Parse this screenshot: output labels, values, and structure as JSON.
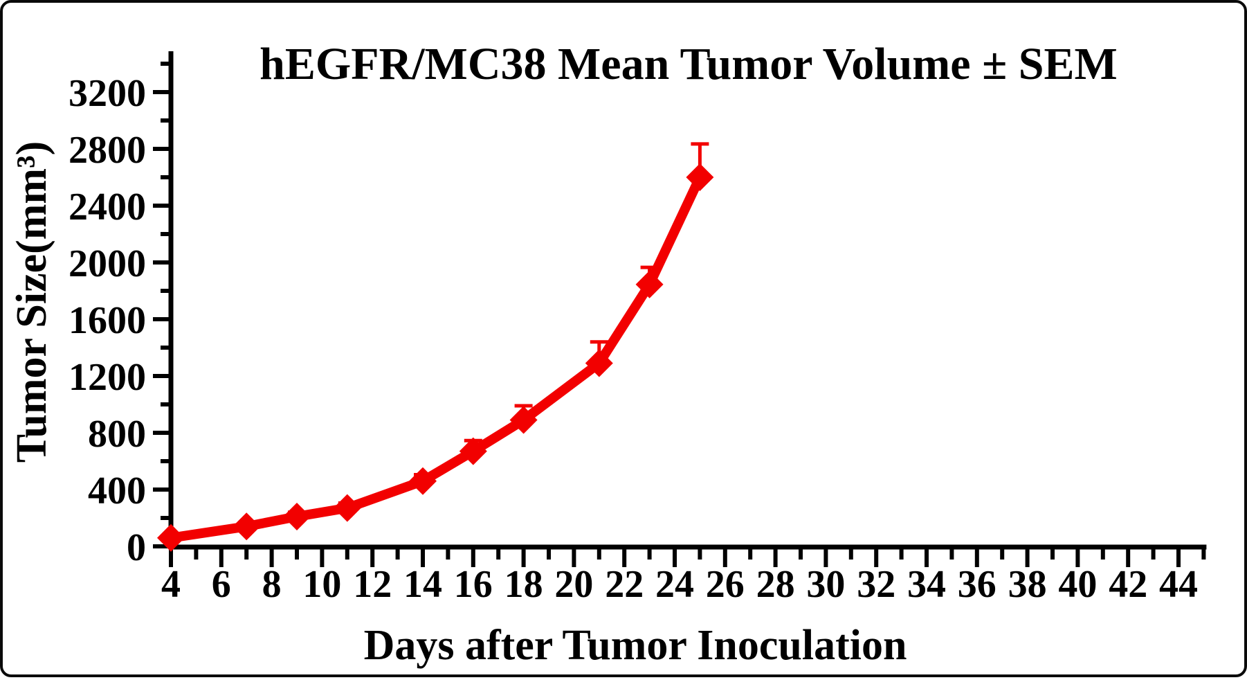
{
  "frame": {
    "background_color": "#ffffff",
    "border_color": "#0a0a0a"
  },
  "chart_data": {
    "type": "line",
    "title": "hEGFR/MC38 Mean Tumor Volume ± SEM",
    "xlabel": "Days after Tumor Inoculation",
    "ylabel": "Tumor Size(mm³)",
    "grid": false,
    "legend": "none",
    "error_bars": "upper SEM only, same color as series",
    "axis_color": "#000000",
    "series": [
      {
        "name": "hEGFR/MC38 mean tumor volume",
        "color": "#f20000",
        "marker": "diamond",
        "x": [
          4,
          7,
          9,
          11,
          14,
          16,
          18,
          21,
          23,
          25
        ],
        "y": [
          60,
          140,
          210,
          270,
          460,
          670,
          890,
          1290,
          1845,
          2600
        ],
        "sem_upper": [
          15,
          20,
          30,
          35,
          45,
          75,
          100,
          150,
          120,
          235
        ]
      }
    ],
    "x_axis": {
      "min": 4,
      "max": 45,
      "major_ticks": [
        4,
        6,
        8,
        10,
        12,
        14,
        16,
        18,
        20,
        22,
        24,
        26,
        28,
        30,
        32,
        34,
        36,
        38,
        40,
        42,
        44
      ],
      "minor_ticks": [
        5,
        7,
        9,
        11,
        13,
        15,
        17,
        19,
        21,
        23,
        25,
        27,
        29,
        31,
        33,
        35,
        37,
        39,
        41,
        43,
        45
      ]
    },
    "y_axis": {
      "min": 0,
      "max": 3400,
      "major_ticks": [
        0,
        400,
        800,
        1200,
        1600,
        2000,
        2400,
        2800,
        3200
      ],
      "minor_ticks": [
        200,
        600,
        1000,
        1400,
        1800,
        2200,
        2600,
        3000,
        3400
      ]
    }
  }
}
